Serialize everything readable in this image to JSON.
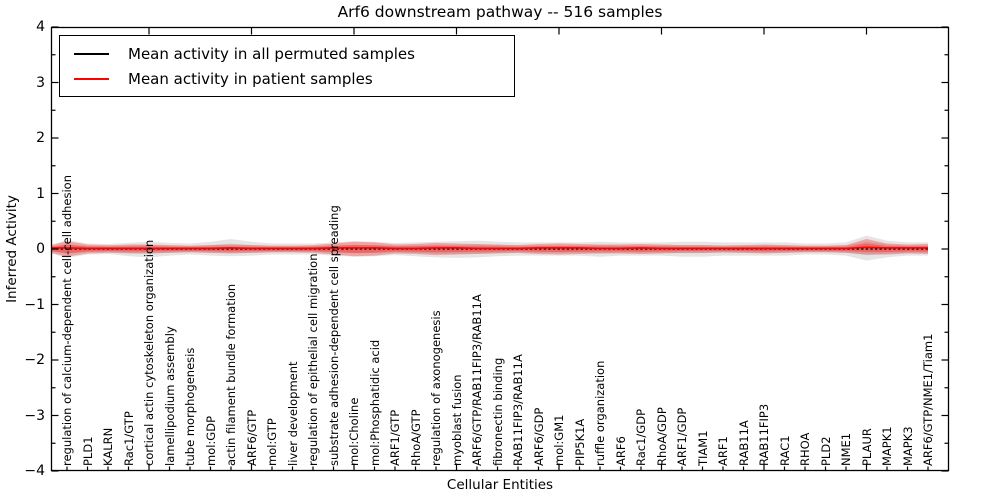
{
  "title": "Arf6 downstream pathway -- 516 samples",
  "axes": {
    "xlabel": "Cellular Entities",
    "ylabel": "Inferred Activity",
    "yticks": [
      "4",
      "3",
      "2",
      "1",
      "0",
      "−1",
      "−2",
      "−3",
      "−4"
    ],
    "ylim": [
      -4,
      4
    ]
  },
  "legend": {
    "items": [
      {
        "label": "Mean activity in all permuted samples",
        "color": "#000000"
      },
      {
        "label": "Mean activity in patient samples",
        "color": "#ff0000"
      }
    ]
  },
  "colors": {
    "patient_line": "#ff0000",
    "permuted_line": "#000000",
    "patient_band": "rgba(255,0,0,0.28)",
    "permuted_band": "rgba(0,0,0,0.10)",
    "spine": "#000000",
    "background": "#ffffff"
  },
  "chart_data": {
    "type": "area",
    "title": "Arf6 downstream pathway -- 516 samples",
    "xlabel": "Cellular Entities",
    "ylabel": "Inferred Activity",
    "ylim": [
      -4,
      4
    ],
    "grid": false,
    "legend_position": "upper left",
    "categories": [
      "regulation of calcium-dependent cell-cell adhesion",
      "PLD1",
      "KALRN",
      "Rac1/GTP",
      "cortical actin cytoskeleton organization",
      "lamellipodium assembly",
      "tube morphogenesis",
      "mol:GDP",
      "actin filament bundle formation",
      "ARF6/GTP",
      "mol:GTP",
      "liver development",
      "regulation of epithelial cell migration",
      "substrate adhesion-dependent cell spreading",
      "mol:Choline",
      "mol:Phosphatidic acid",
      "ARF1/GTP",
      "RhoA/GTP",
      "regulation of axonogenesis",
      "myoblast fusion",
      "ARF6/GTP/RAB11FIP3/RAB11A",
      "fibronectin binding",
      "RAB11FIP3/RAB11A",
      "ARF6/GDP",
      "mol:GM1",
      "PIP5K1A",
      "ruffle organization",
      "ARF6",
      "Rac1/GDP",
      "RhoA/GDP",
      "ARF1/GDP",
      "TIAM1",
      "ARF1",
      "RAB11A",
      "RAB11FIP3",
      "RAC1",
      "RHOA",
      "PLD2",
      "NME1",
      "PLAUR",
      "MAPK1",
      "MAPK3",
      "ARF6/GTP/NME1/Tiam1"
    ],
    "series": [
      {
        "name": "Mean activity in all permuted samples",
        "color": "#000000",
        "style": "dashed",
        "values": [
          0,
          0,
          0,
          0,
          0,
          0,
          0,
          0,
          0,
          0,
          0,
          0,
          0,
          0,
          0,
          0,
          0,
          0,
          0,
          0,
          0,
          0,
          0,
          0,
          0,
          0,
          0,
          0,
          0,
          0,
          0,
          0,
          0,
          0,
          0,
          0,
          0,
          0,
          0,
          0,
          0,
          0,
          0
        ]
      },
      {
        "name": "Mean activity in patient samples",
        "color": "#ff0000",
        "style": "solid",
        "values": [
          0.02,
          0.01,
          0.01,
          0.01,
          0.01,
          0.01,
          0.01,
          0.01,
          0.02,
          0.01,
          0.01,
          0.01,
          0.01,
          0.02,
          0.02,
          0.02,
          0.01,
          0.01,
          0.02,
          0.02,
          0.01,
          0.01,
          0.01,
          0.02,
          0.02,
          0.02,
          0.01,
          0.01,
          0.02,
          0.01,
          0.01,
          0.01,
          0.01,
          0.01,
          0.01,
          0.01,
          0.01,
          0.01,
          0.01,
          0.03,
          0.02,
          0.02,
          0.02
        ]
      }
    ],
    "bands": {
      "permuted": {
        "name": "Spread of activity in all permuted samples",
        "upper": [
          0.16,
          0.1,
          0.09,
          0.11,
          0.13,
          0.11,
          0.1,
          0.13,
          0.18,
          0.13,
          0.1,
          0.1,
          0.1,
          0.12,
          0.14,
          0.13,
          0.11,
          0.12,
          0.13,
          0.14,
          0.15,
          0.13,
          0.12,
          0.12,
          0.12,
          0.12,
          0.13,
          0.12,
          0.12,
          0.12,
          0.13,
          0.13,
          0.12,
          0.12,
          0.12,
          0.12,
          0.1,
          0.1,
          0.12,
          0.24,
          0.15,
          0.12,
          0.12
        ],
        "lower": [
          -0.16,
          -0.1,
          -0.09,
          -0.13,
          -0.15,
          -0.12,
          -0.1,
          -0.12,
          -0.13,
          -0.12,
          -0.1,
          -0.1,
          -0.1,
          -0.12,
          -0.14,
          -0.13,
          -0.11,
          -0.13,
          -0.15,
          -0.16,
          -0.15,
          -0.13,
          -0.12,
          -0.12,
          -0.12,
          -0.12,
          -0.14,
          -0.12,
          -0.12,
          -0.12,
          -0.14,
          -0.14,
          -0.12,
          -0.12,
          -0.12,
          -0.12,
          -0.1,
          -0.1,
          -0.12,
          -0.21,
          -0.15,
          -0.12,
          -0.12
        ]
      },
      "patient": {
        "name": "Spread of activity in patient samples",
        "upper": [
          0.14,
          0.08,
          0.07,
          0.08,
          0.08,
          0.07,
          0.06,
          0.07,
          0.08,
          0.07,
          0.06,
          0.06,
          0.07,
          0.1,
          0.13,
          0.12,
          0.08,
          0.09,
          0.11,
          0.1,
          0.09,
          0.08,
          0.07,
          0.09,
          0.1,
          0.09,
          0.08,
          0.08,
          0.09,
          0.08,
          0.07,
          0.07,
          0.06,
          0.07,
          0.08,
          0.07,
          0.06,
          0.06,
          0.07,
          0.18,
          0.1,
          0.08,
          0.09
        ],
        "lower": [
          -0.14,
          -0.08,
          -0.07,
          -0.08,
          -0.08,
          -0.07,
          -0.06,
          -0.07,
          -0.08,
          -0.07,
          -0.06,
          -0.06,
          -0.07,
          -0.1,
          -0.13,
          -0.12,
          -0.08,
          -0.09,
          -0.11,
          -0.1,
          -0.09,
          -0.08,
          -0.07,
          -0.09,
          -0.1,
          -0.09,
          -0.08,
          -0.08,
          -0.09,
          -0.08,
          -0.07,
          -0.07,
          -0.06,
          -0.07,
          -0.08,
          -0.07,
          -0.06,
          -0.06,
          -0.07,
          -0.1,
          -0.1,
          -0.08,
          -0.09
        ]
      }
    }
  }
}
